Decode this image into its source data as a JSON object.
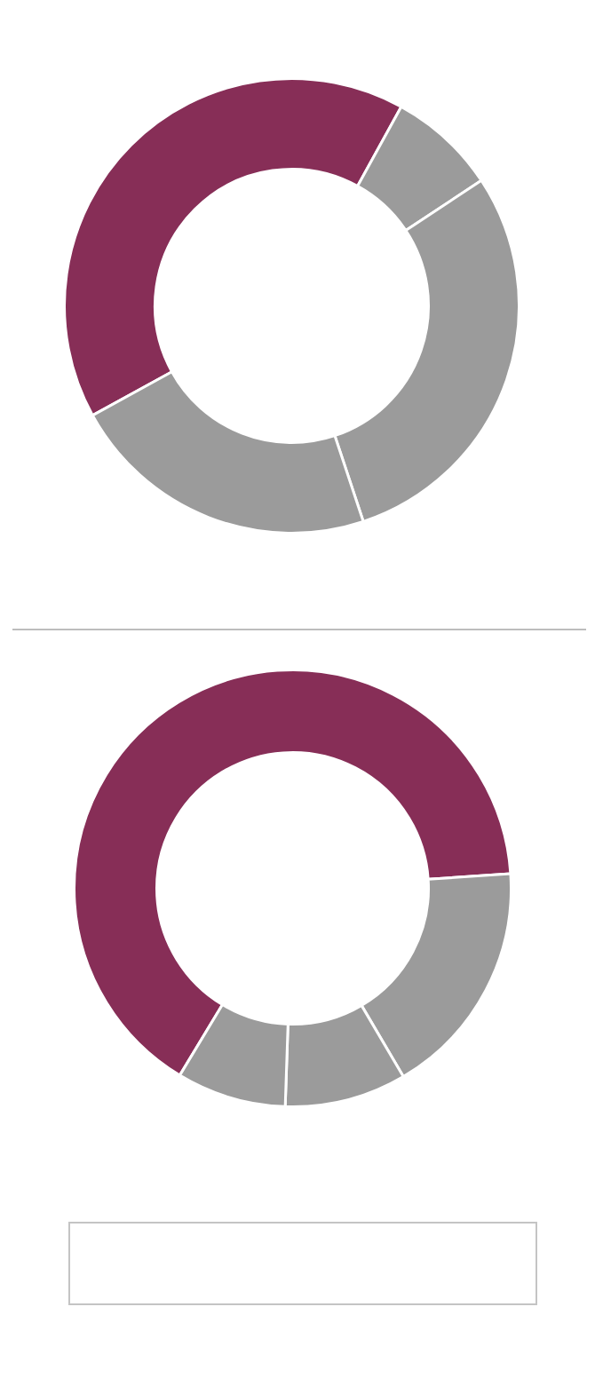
{
  "chart_data": [
    {
      "type": "donut",
      "categories": [
        null,
        null,
        null,
        null
      ],
      "values": [
        41,
        7.7,
        29.2,
        22.1
      ],
      "colors": [
        "#872e57",
        "#9b9b9b",
        "#9b9b9b",
        "#9b9b9b"
      ]
    },
    {
      "type": "donut",
      "categories": [
        null,
        null,
        null,
        null
      ],
      "values": [
        65.3,
        17.6,
        9.0,
        8.1
      ],
      "colors": [
        "#872e57",
        "#9b9b9b",
        "#9b9b9b",
        "#9b9b9b"
      ]
    }
  ]
}
